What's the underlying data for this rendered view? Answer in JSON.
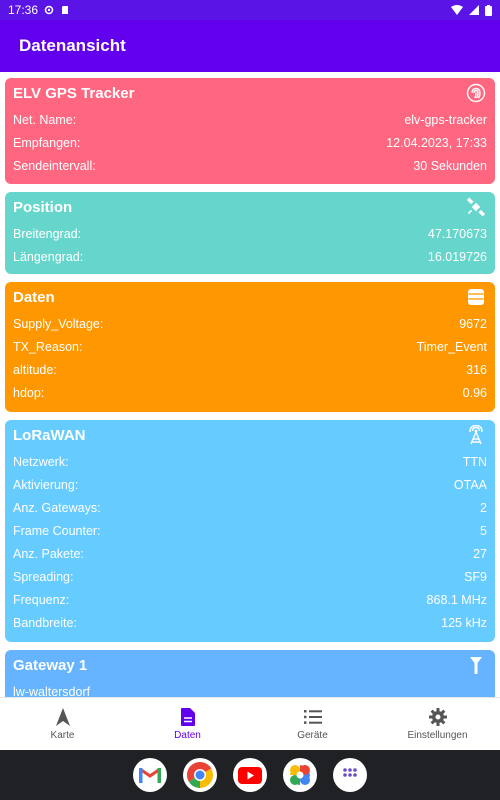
{
  "statusbar": {
    "time": "17:36"
  },
  "appbar": {
    "title": "Datenansicht"
  },
  "cards": {
    "tracker": {
      "title": "ELV GPS Tracker",
      "rows": [
        {
          "label": "Net. Name:",
          "value": "elv-gps-tracker"
        },
        {
          "label": "Empfangen:",
          "value": "12.04.2023, 17:33"
        },
        {
          "label": "Sendeintervall:",
          "value": "30 Sekunden"
        }
      ]
    },
    "position": {
      "title": "Position",
      "rows": [
        {
          "label": "Breitengrad:",
          "value": "47.170673"
        },
        {
          "label": "Längengrad:",
          "value": "16.019726"
        }
      ]
    },
    "daten": {
      "title": "Daten",
      "rows": [
        {
          "label": "Supply_Voltage:",
          "value": "9672"
        },
        {
          "label": "TX_Reason:",
          "value": "Timer_Event"
        },
        {
          "label": "altitude:",
          "value": "316"
        },
        {
          "label": "hdop:",
          "value": "0.96"
        }
      ]
    },
    "lorawan": {
      "title": "LoRaWAN",
      "rows": [
        {
          "label": "Netzwerk:",
          "value": "TTN"
        },
        {
          "label": "Aktivierung:",
          "value": "OTAA"
        },
        {
          "label": "Anz. Gateways:",
          "value": "2"
        },
        {
          "label": "Frame Counter:",
          "value": "5"
        },
        {
          "label": "Anz. Pakete:",
          "value": "27"
        },
        {
          "label": "Spreading:",
          "value": "SF9"
        },
        {
          "label": "Frequenz:",
          "value": "868.1 MHz"
        },
        {
          "label": "Bandbreite:",
          "value": "125 kHz"
        }
      ]
    },
    "gateway": {
      "title": "Gateway 1",
      "rows": [
        {
          "label": "lw-waltersdorf",
          "value": ""
        }
      ]
    }
  },
  "bottomnav": {
    "items": [
      {
        "label": "Karte",
        "icon": "navigation-arrow-icon"
      },
      {
        "label": "Daten",
        "icon": "document-icon"
      },
      {
        "label": "Geräte",
        "icon": "list-icon"
      },
      {
        "label": "Einstellungen",
        "icon": "gear-icon"
      }
    ],
    "active": "Daten"
  },
  "dock": {
    "apps": [
      "gmail-icon",
      "chrome-icon",
      "youtube-icon",
      "photos-icon",
      "app-drawer-icon"
    ]
  },
  "colors": {
    "appbar": "#6200ee",
    "tracker": "#ff6680",
    "position": "#66d6cc",
    "daten": "#ff9800",
    "lorawan": "#66ccff",
    "gateway": "#66b3ff"
  }
}
